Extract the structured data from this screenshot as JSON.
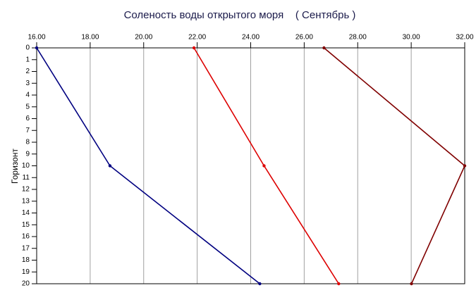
{
  "chart_data": {
    "type": "line",
    "title": "Соленость воды открытого моря    ( Сентябрь )",
    "y_label": "Горизонт",
    "y": [
      0,
      10,
      20
    ],
    "series": [
      {
        "color": "#000080",
        "values": [
          16.0,
          18.74,
          24.34
        ]
      },
      {
        "color": "#dd0000",
        "values": [
          21.88,
          24.5,
          27.29
        ]
      },
      {
        "color": "#800000",
        "values": [
          26.74,
          32.0,
          30.01
        ]
      }
    ],
    "xlim": [
      16,
      32
    ],
    "xticks": [
      {
        "value": 16,
        "label": "16.00"
      },
      {
        "value": 18,
        "label": "18.00"
      },
      {
        "value": 20,
        "label": "20.00"
      },
      {
        "value": 22,
        "label": "22.00"
      },
      {
        "value": 24,
        "label": "24.00"
      },
      {
        "value": 26,
        "label": "26.00"
      },
      {
        "value": 28,
        "label": "28.00"
      },
      {
        "value": 30,
        "label": "30.00"
      },
      {
        "value": 32,
        "label": "32.00"
      }
    ],
    "ylim": [
      20,
      0
    ],
    "yticks": [
      0,
      1,
      2,
      3,
      4,
      5,
      6,
      7,
      8,
      9,
      10,
      11,
      12,
      13,
      14,
      15,
      16,
      17,
      18,
      19,
      20
    ],
    "x_axis_position": "top",
    "grid": true
  }
}
